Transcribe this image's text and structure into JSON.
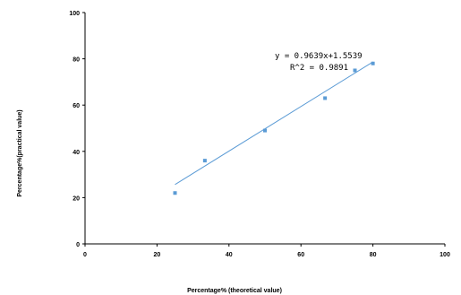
{
  "chart_data": {
    "type": "scatter",
    "xlabel": "Percentage% (theoretical value)",
    "ylabel": "Percentage%(practical value)",
    "xlim": [
      0,
      100
    ],
    "ylim": [
      0,
      100
    ],
    "xticks": [
      "0",
      "20",
      "40",
      "60",
      "80",
      "100"
    ],
    "yticks": [
      "0",
      "20",
      "40",
      "60",
      "80",
      "100"
    ],
    "grid": false,
    "series": [
      {
        "x": [
          25,
          33.3,
          50,
          66.7,
          75,
          80
        ],
        "y": [
          22,
          36,
          49,
          63,
          75,
          78
        ],
        "color": "#5b9bd5"
      }
    ],
    "trendline": {
      "slope": 0.9639,
      "intercept": 1.5539,
      "x_range": [
        25,
        80
      ],
      "color": "#5b9bd5"
    },
    "annotations": {
      "equation": "y = 0.9639x+1.5539",
      "r2": "R^2 = 0.9891"
    }
  }
}
